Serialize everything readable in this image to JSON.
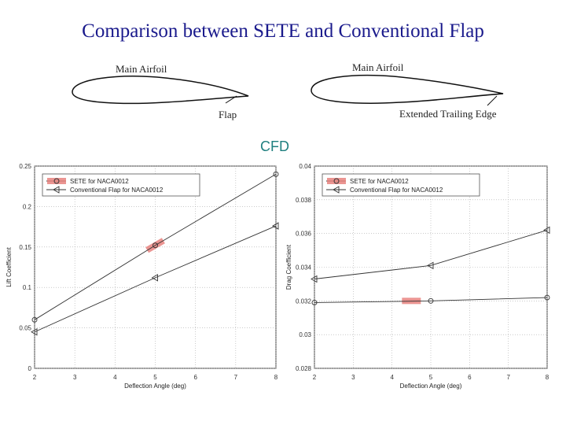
{
  "slide": {
    "title": "Comparison between SETE and Conventional Flap",
    "cfd_label": "CFD"
  },
  "diagrams": {
    "left_main": "Main Airfoil",
    "left_flap": "Flap",
    "right_main": "Main Airfoil",
    "right_ext": "Extended Trailing Edge"
  },
  "chart_data": [
    {
      "type": "line",
      "xlabel": "Deflection Angle (deg)",
      "ylabel": "Lift Coefficient",
      "xlim": [
        2,
        8
      ],
      "ylim": [
        0,
        0.25
      ],
      "xticks": [
        "2",
        "3",
        "4",
        "5",
        "6",
        "7",
        "8"
      ],
      "yticks": [
        "0",
        "0.05",
        "0.1",
        "0.15",
        "0.2",
        "0.25"
      ],
      "x": [
        2,
        5,
        8
      ],
      "series": [
        {
          "name": "SETE for NACA0012",
          "marker": "circle",
          "values": [
            0.06,
            0.152,
            0.24
          ]
        },
        {
          "name": "Conventional Flap for NACA0012",
          "marker": "triangle-left",
          "values": [
            0.045,
            0.112,
            0.176
          ]
        }
      ],
      "highlight": {
        "x": 5,
        "y": 0.152,
        "color": "#e8837f"
      },
      "grid": true,
      "legend": "top-left"
    },
    {
      "type": "line",
      "xlabel": "Deflection Angle (deg)",
      "ylabel": "Drag Coefficient",
      "xlim": [
        2,
        8
      ],
      "ylim": [
        0.028,
        0.04
      ],
      "xticks": [
        "2",
        "3",
        "4",
        "5",
        "6",
        "7",
        "8"
      ],
      "yticks": [
        "0.028",
        "0.03",
        "0.032",
        "0.034",
        "0.036",
        "0.038",
        "0.04"
      ],
      "x": [
        2,
        5,
        8
      ],
      "series": [
        {
          "name": "SETE for NACA0012",
          "marker": "circle",
          "values": [
            0.0319,
            0.032,
            0.0322
          ]
        },
        {
          "name": "Conventional Flap for NACA0012",
          "marker": "triangle-left",
          "values": [
            0.0333,
            0.0341,
            0.0362
          ]
        }
      ],
      "highlight": {
        "x": 4.5,
        "y": 0.032,
        "color": "#e8837f"
      },
      "grid": true,
      "legend": "top-left"
    }
  ]
}
